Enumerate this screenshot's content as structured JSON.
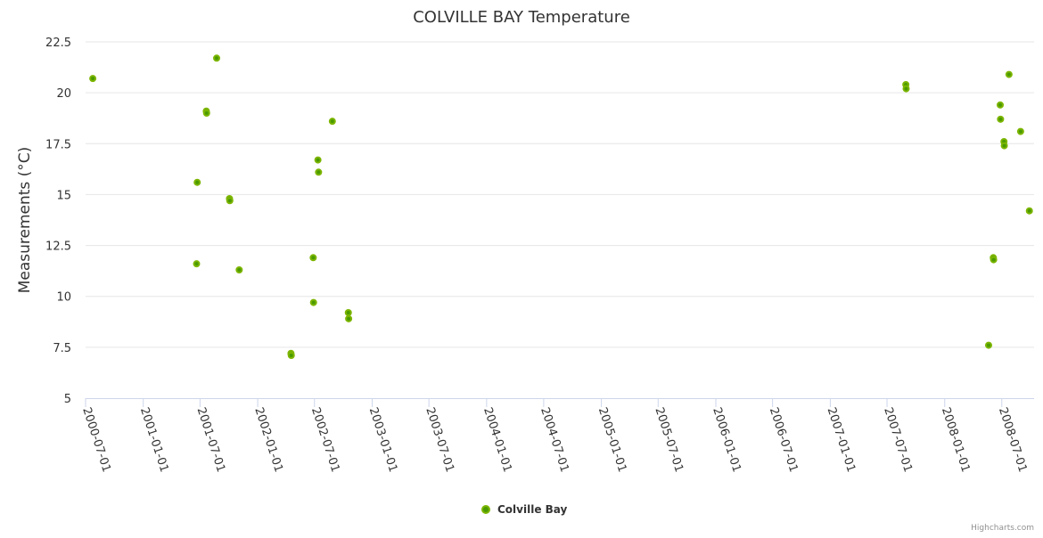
{
  "chart_data": {
    "type": "scatter",
    "title": "COLVILLE BAY Temperature",
    "xlabel": "",
    "ylabel": "Measurements (°C)",
    "ylim": [
      5,
      22.5
    ],
    "yticks": [
      "5",
      "7.5",
      "10",
      "12.5",
      "15",
      "17.5",
      "20",
      "22.5"
    ],
    "xlim": [
      "2000-07-01",
      "2008-10-12"
    ],
    "xticks": [
      "2000-07-01",
      "2001-01-01",
      "2001-07-01",
      "2002-01-01",
      "2002-07-01",
      "2003-01-01",
      "2003-07-01",
      "2004-01-01",
      "2004-07-01",
      "2005-01-01",
      "2005-07-01",
      "2006-01-01",
      "2006-07-01",
      "2007-01-01",
      "2007-07-01",
      "2008-01-01",
      "2008-07-01"
    ],
    "grid": true,
    "legend_position": "bottom-center",
    "series": [
      {
        "name": "Colville Bay",
        "color": "#7cb500",
        "inner_color": "#4a9a00",
        "points": [
          [
            "2000-07-24",
            20.7
          ],
          [
            "2001-06-22",
            15.6
          ],
          [
            "2001-06-20",
            11.6
          ],
          [
            "2001-07-21",
            19.1
          ],
          [
            "2001-07-22",
            19.0
          ],
          [
            "2001-08-23",
            21.7
          ],
          [
            "2001-10-03",
            14.8
          ],
          [
            "2001-10-04",
            14.7
          ],
          [
            "2001-11-03",
            11.3
          ],
          [
            "2002-04-17",
            7.2
          ],
          [
            "2002-04-18",
            7.1
          ],
          [
            "2002-06-27",
            11.9
          ],
          [
            "2002-06-28",
            9.7
          ],
          [
            "2002-07-12",
            16.7
          ],
          [
            "2002-07-14",
            16.1
          ],
          [
            "2002-08-27",
            18.6
          ],
          [
            "2002-10-17",
            9.2
          ],
          [
            "2002-10-18",
            8.9
          ],
          [
            "2007-08-30",
            20.4
          ],
          [
            "2007-08-31",
            20.2
          ],
          [
            "2008-05-20",
            7.6
          ],
          [
            "2008-06-04",
            11.9
          ],
          [
            "2008-06-05",
            11.8
          ],
          [
            "2008-06-26",
            19.4
          ],
          [
            "2008-06-27",
            18.7
          ],
          [
            "2008-07-08",
            17.6
          ],
          [
            "2008-07-09",
            17.4
          ],
          [
            "2008-07-24",
            20.9
          ],
          [
            "2008-08-30",
            18.1
          ],
          [
            "2008-09-27",
            14.2
          ]
        ]
      }
    ]
  },
  "credits": "Highcharts.com"
}
